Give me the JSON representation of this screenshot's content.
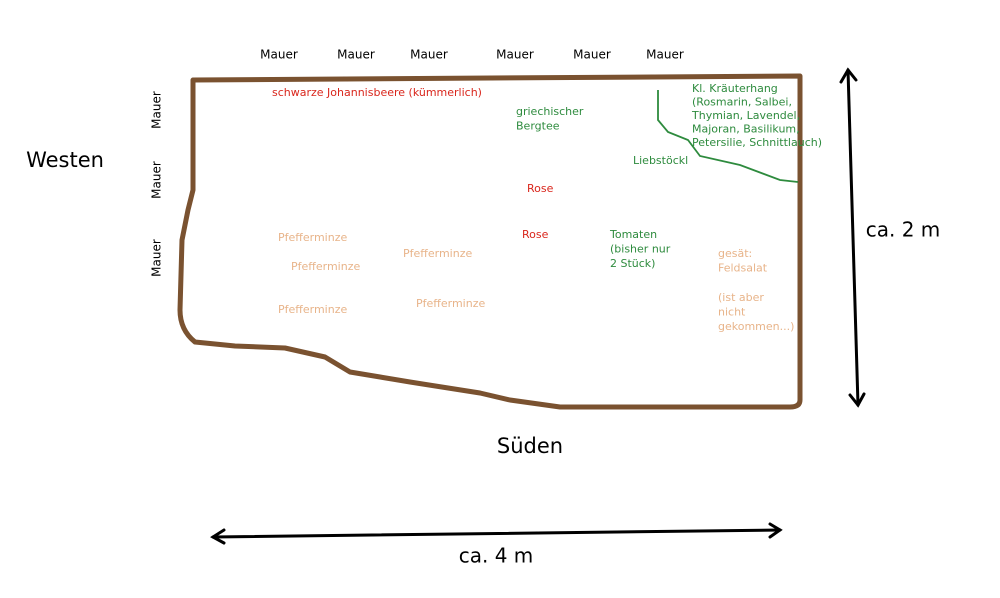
{
  "walls": {
    "north": [
      "Mauer",
      "Mauer",
      "Mauer",
      "Mauer",
      "Mauer",
      "Mauer"
    ],
    "west": [
      "Mauer",
      "Mauer",
      "Mauer"
    ]
  },
  "directions": {
    "west": "Westen",
    "south": "Süden"
  },
  "dimensions": {
    "height": "ca. 2 m",
    "width": "ca. 4 m"
  },
  "plants": [
    {
      "lines": [
        "schwarze Johannisbeere (kümmerlich)"
      ],
      "color": "#d9261c"
    },
    {
      "lines": [
        "griechischer",
        "Bergtee"
      ],
      "color": "#2e8b3e"
    },
    {
      "lines": [
        "Kl. Kräuterhang",
        "(Rosmarin, Salbei,",
        "Thymian, Lavendel,",
        "Majoran, Basilikum,",
        "Petersilie, Schnittlauch)"
      ],
      "color": "#2e8b3e"
    },
    {
      "lines": [
        "Liebstöckl"
      ],
      "color": "#2e8b3e"
    },
    {
      "lines": [
        "Rose"
      ],
      "color": "#d9261c"
    },
    {
      "lines": [
        "Rose"
      ],
      "color": "#d9261c"
    },
    {
      "lines": [
        "Tomaten",
        "(bisher nur",
        "2 Stück)"
      ],
      "color": "#2e8b3e"
    },
    {
      "lines": [
        "Pfefferminze"
      ],
      "color": "#e8b48a"
    },
    {
      "lines": [
        "Pfefferminze"
      ],
      "color": "#e8b48a"
    },
    {
      "lines": [
        "Pfefferminze"
      ],
      "color": "#e8b48a"
    },
    {
      "lines": [
        "Pfefferminze"
      ],
      "color": "#e8b48a"
    },
    {
      "lines": [
        "Pfefferminze"
      ],
      "color": "#e8b48a"
    },
    {
      "lines": [
        "gesät:",
        "Feldsalat"
      ],
      "color": "#e8b48a"
    },
    {
      "lines": [
        "(ist aber",
        "nicht",
        "gekommen...)"
      ],
      "color": "#e8b48a"
    }
  ]
}
